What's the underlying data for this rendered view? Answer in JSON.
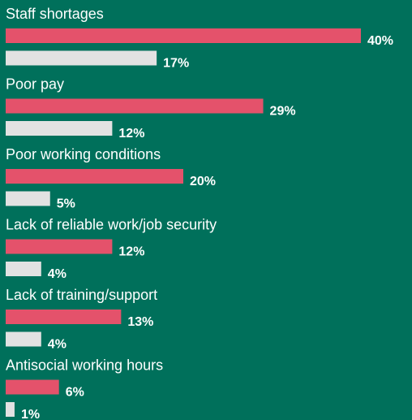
{
  "chart_data": {
    "type": "bar",
    "orientation": "horizontal",
    "categories": [
      "Staff shortages",
      "Poor pay",
      "Poor working conditions",
      "Lack of reliable work/job security",
      "Lack of training/support",
      "Antisocial working hours"
    ],
    "series": [
      {
        "color": "#e4526b",
        "values": [
          40,
          29,
          20,
          12,
          13,
          6
        ],
        "value_labels": [
          "40%",
          "29%",
          "20%",
          "12%",
          "13%",
          "6%"
        ]
      },
      {
        "color": "#e2e2e2",
        "values": [
          17,
          12,
          5,
          4,
          4,
          1
        ],
        "value_labels": [
          "17%",
          "12%",
          "5%",
          "4%",
          "4%",
          "1%"
        ]
      }
    ]
  }
}
